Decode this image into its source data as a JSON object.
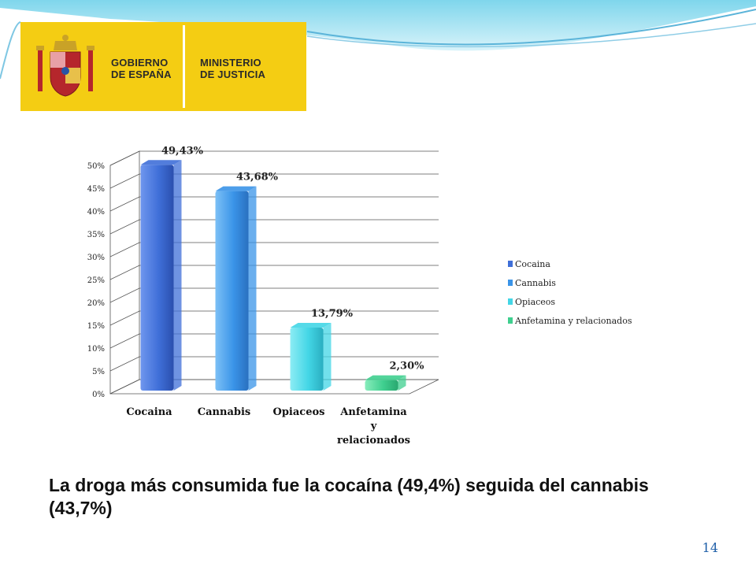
{
  "logo": {
    "left_line1": "GOBIERNO",
    "left_line2": "DE ESPAÑA",
    "right_line1": "MINISTERIO",
    "right_line2": "DE JUSTICIA"
  },
  "chart_data": {
    "type": "bar",
    "categories": [
      "Cocaina",
      "Cannabis",
      "Opiaceos",
      "Anfetamina y relacionados"
    ],
    "category_label_lines": [
      [
        "Cocaina"
      ],
      [
        "Cannabis"
      ],
      [
        "Opiaceos"
      ],
      [
        "Anfetamina",
        "y",
        "relacionados"
      ]
    ],
    "values": [
      49.43,
      43.68,
      13.79,
      2.3
    ],
    "data_labels": [
      "49,43%",
      "43,68%",
      "13,79%",
      "2,30%"
    ],
    "colors": [
      "#3f6fd8",
      "#3a94e8",
      "#43d6e6",
      "#3fcf8f"
    ],
    "yticks": [
      "0%",
      "5%",
      "10%",
      "15%",
      "20%",
      "25%",
      "30%",
      "35%",
      "40%",
      "45%",
      "50%"
    ],
    "ylim": [
      0,
      50
    ],
    "grid": true,
    "legend": {
      "placement": "right",
      "entries": [
        "Cocaina",
        "Cannabis",
        "Opiaceos",
        "Anfetamina y relacionados"
      ]
    },
    "title": "",
    "xlabel": "",
    "ylabel": ""
  },
  "caption": "La droga más consumida fue la cocaína (49,4%) seguida del cannabis (43,7%)",
  "page_number": "14"
}
